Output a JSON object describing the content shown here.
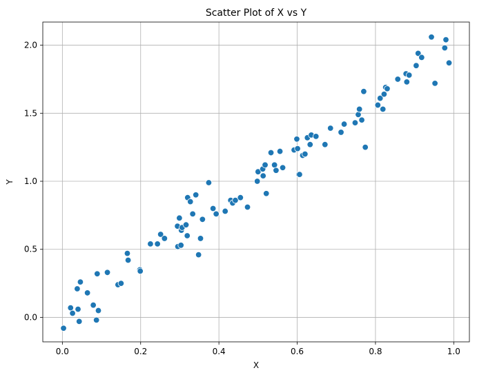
{
  "chart_data": {
    "type": "scatter",
    "title": "Scatter Plot of X vs Y",
    "xlabel": "X",
    "ylabel": "Y",
    "xlim": [
      -0.05,
      1.04
    ],
    "ylim": [
      -0.18,
      2.17
    ],
    "xticks": [
      0.0,
      0.2,
      0.4,
      0.6,
      0.8,
      1.0
    ],
    "xtick_labels": [
      "0.0",
      "0.2",
      "0.4",
      "0.6",
      "0.8",
      "1.0"
    ],
    "yticks": [
      0.0,
      0.5,
      1.0,
      1.5,
      2.0
    ],
    "ytick_labels": [
      "0.0",
      "0.5",
      "1.0",
      "1.5",
      "2.0"
    ],
    "grid": true,
    "marker_color": "#1f77b4",
    "series": [
      {
        "points": [
          [
            0.003,
            -0.08
          ],
          [
            0.021,
            0.07
          ],
          [
            0.026,
            0.03
          ],
          [
            0.038,
            0.21
          ],
          [
            0.04,
            0.06
          ],
          [
            0.043,
            -0.03
          ],
          [
            0.046,
            0.26
          ],
          [
            0.064,
            0.18
          ],
          [
            0.079,
            0.09
          ],
          [
            0.087,
            -0.02
          ],
          [
            0.089,
            0.32
          ],
          [
            0.092,
            0.05
          ],
          [
            0.115,
            0.33
          ],
          [
            0.142,
            0.24
          ],
          [
            0.15,
            0.25
          ],
          [
            0.166,
            0.47
          ],
          [
            0.168,
            0.42
          ],
          [
            0.198,
            0.35
          ],
          [
            0.199,
            0.34
          ],
          [
            0.225,
            0.54
          ],
          [
            0.243,
            0.54
          ],
          [
            0.251,
            0.61
          ],
          [
            0.261,
            0.58
          ],
          [
            0.294,
            0.67
          ],
          [
            0.295,
            0.52
          ],
          [
            0.299,
            0.73
          ],
          [
            0.303,
            0.53
          ],
          [
            0.304,
            0.64
          ],
          [
            0.306,
            0.66
          ],
          [
            0.316,
            0.68
          ],
          [
            0.319,
            0.6
          ],
          [
            0.32,
            0.88
          ],
          [
            0.327,
            0.85
          ],
          [
            0.333,
            0.76
          ],
          [
            0.341,
            0.9
          ],
          [
            0.348,
            0.46
          ],
          [
            0.353,
            0.58
          ],
          [
            0.358,
            0.72
          ],
          [
            0.374,
            0.99
          ],
          [
            0.385,
            0.8
          ],
          [
            0.393,
            0.76
          ],
          [
            0.416,
            0.78
          ],
          [
            0.43,
            0.86
          ],
          [
            0.435,
            0.84
          ],
          [
            0.442,
            0.86
          ],
          [
            0.455,
            0.88
          ],
          [
            0.473,
            0.81
          ],
          [
            0.498,
            1.0
          ],
          [
            0.5,
            1.07
          ],
          [
            0.512,
            1.09
          ],
          [
            0.513,
            1.04
          ],
          [
            0.518,
            1.12
          ],
          [
            0.521,
            0.91
          ],
          [
            0.533,
            1.21
          ],
          [
            0.542,
            1.12
          ],
          [
            0.546,
            1.08
          ],
          [
            0.556,
            1.22
          ],
          [
            0.563,
            1.1
          ],
          [
            0.592,
            1.23
          ],
          [
            0.599,
            1.31
          ],
          [
            0.601,
            1.24
          ],
          [
            0.604,
            1.05
          ],
          [
            0.606,
            1.05
          ],
          [
            0.614,
            1.19
          ],
          [
            0.62,
            1.2
          ],
          [
            0.626,
            1.32
          ],
          [
            0.633,
            1.27
          ],
          [
            0.636,
            1.34
          ],
          [
            0.648,
            1.33
          ],
          [
            0.671,
            1.27
          ],
          [
            0.685,
            1.39
          ],
          [
            0.712,
            1.36
          ],
          [
            0.72,
            1.42
          ],
          [
            0.748,
            1.43
          ],
          [
            0.756,
            1.49
          ],
          [
            0.759,
            1.53
          ],
          [
            0.765,
            1.45
          ],
          [
            0.77,
            1.66
          ],
          [
            0.774,
            1.25
          ],
          [
            0.806,
            1.56
          ],
          [
            0.812,
            1.61
          ],
          [
            0.819,
            1.53
          ],
          [
            0.822,
            1.64
          ],
          [
            0.826,
            1.69
          ],
          [
            0.83,
            1.68
          ],
          [
            0.857,
            1.75
          ],
          [
            0.878,
            1.79
          ],
          [
            0.88,
            1.73
          ],
          [
            0.886,
            1.78
          ],
          [
            0.904,
            1.85
          ],
          [
            0.909,
            1.94
          ],
          [
            0.918,
            1.91
          ],
          [
            0.943,
            2.06
          ],
          [
            0.952,
            1.72
          ],
          [
            0.977,
            1.98
          ],
          [
            0.98,
            2.04
          ],
          [
            0.988,
            1.87
          ]
        ]
      }
    ]
  }
}
